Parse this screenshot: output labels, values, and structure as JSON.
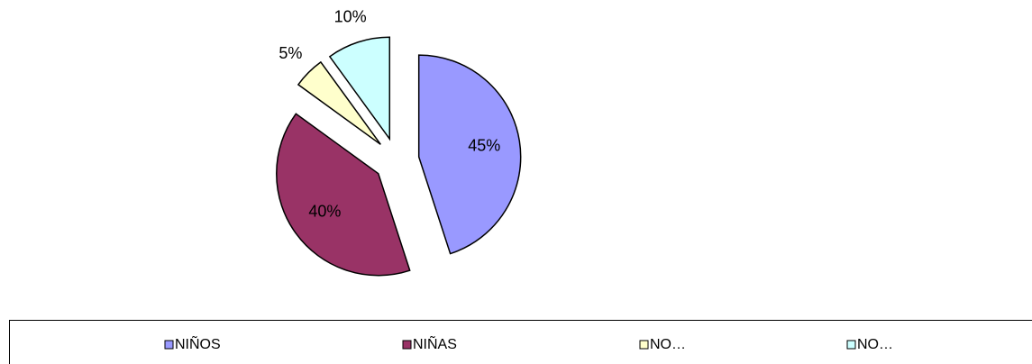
{
  "chart_data": {
    "type": "pie",
    "categories": [
      "NIÑOS",
      "NIÑAS",
      "NO…",
      "NO…"
    ],
    "values": [
      45,
      40,
      5,
      10
    ],
    "value_labels": [
      "45%",
      "40%",
      "5%",
      "10%"
    ],
    "colors": [
      "#9999ff",
      "#993366",
      "#ffffcc",
      "#ccffff"
    ],
    "legend": "bottom"
  }
}
